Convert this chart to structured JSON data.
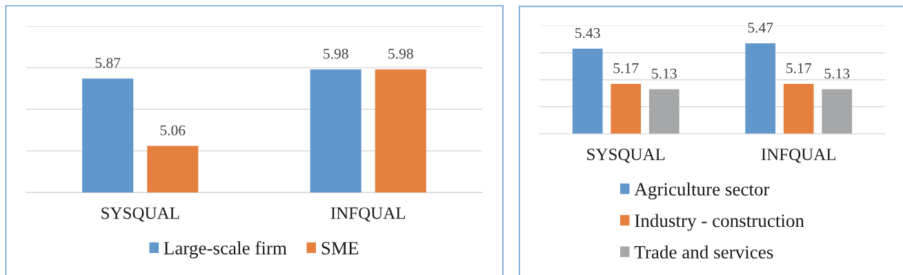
{
  "chart_data": [
    {
      "type": "bar",
      "categories": [
        "SYSQUAL",
        "INFQUAL"
      ],
      "series": [
        {
          "name": "Large-scale firm",
          "color": "#6297cc",
          "values": [
            5.87,
            5.98
          ]
        },
        {
          "name": "SME",
          "color": "#e6803f",
          "values": [
            5.06,
            5.98
          ]
        }
      ],
      "ylim": [
        4.5,
        6.5
      ],
      "yticks": [
        {
          "value": 4.5,
          "label": null
        },
        {
          "value": 5.0,
          "label": null
        },
        {
          "value": 5.5,
          "label": null
        },
        {
          "value": 6.0,
          "label": null
        },
        {
          "value": 6.5,
          "label": null
        }
      ],
      "tick_labels": "x",
      "grid": "y",
      "legend": "bottom",
      "data_labels": true
    },
    {
      "type": "bar",
      "categories": [
        "SYSQUAL",
        "INFQUAL"
      ],
      "series": [
        {
          "name": "Agriculture sector",
          "color": "#6297cc",
          "values": [
            5.43,
            5.47
          ]
        },
        {
          "name": "Industry - construction",
          "color": "#e6803f",
          "values": [
            5.17,
            5.17
          ]
        },
        {
          "name": "Trade and services",
          "color": "#a6a7a9",
          "values": [
            5.13,
            5.13
          ]
        }
      ],
      "ylim": [
        4.8,
        5.6
      ],
      "yticks": [
        {
          "value": 4.8,
          "label": null
        },
        {
          "value": 5.0,
          "label": null
        },
        {
          "value": 5.2,
          "label": null
        },
        {
          "value": 5.4,
          "label": null
        },
        {
          "value": 5.6,
          "label": null
        }
      ],
      "tick_labels": "x",
      "grid": "y",
      "legend": "bottom",
      "data_labels": true
    }
  ]
}
